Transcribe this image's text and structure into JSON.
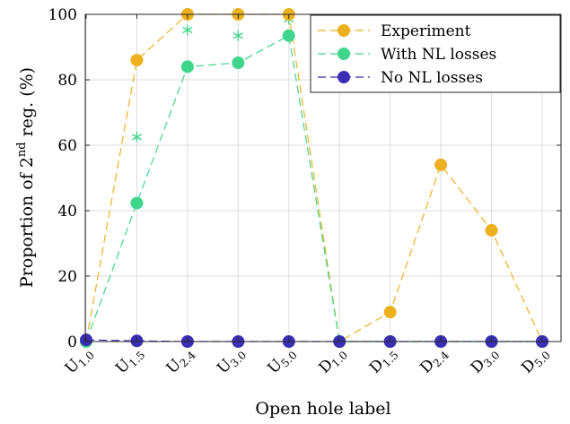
{
  "chart_data": {
    "type": "line",
    "xlabel": "Open hole label",
    "ylabel": {
      "base": "Proportion of 2",
      "sup": "nd",
      "rest": " reg. (%)"
    },
    "ylim": [
      0,
      100
    ],
    "yticks": [
      0,
      20,
      40,
      60,
      80,
      100
    ],
    "grid": true,
    "legend_position": "top-right",
    "categories": [
      {
        "base": "U",
        "sub": "1.0"
      },
      {
        "base": "U",
        "sub": "1.5"
      },
      {
        "base": "U",
        "sub": "2.4"
      },
      {
        "base": "U",
        "sub": "3.0"
      },
      {
        "base": "U",
        "sub": "5.0"
      },
      {
        "base": "D",
        "sub": "1.0"
      },
      {
        "base": "D",
        "sub": "1.5"
      },
      {
        "base": "D",
        "sub": "2.4"
      },
      {
        "base": "D",
        "sub": "3.0"
      },
      {
        "base": "D",
        "sub": "5.0"
      }
    ],
    "series": [
      {
        "name": "Experiment",
        "color": "#EDB120",
        "marker": "circle",
        "values": [
          0,
          86,
          100,
          100,
          100,
          0,
          9,
          54,
          34,
          0
        ]
      },
      {
        "name": "With NL losses",
        "color": "#3FD68C",
        "marker": "circle",
        "values": [
          0,
          42.3,
          84,
          85.2,
          93.5,
          0,
          0,
          0,
          0,
          0
        ]
      },
      {
        "name": "No NL losses",
        "color": "#3A2FB4",
        "marker": "circle",
        "values": [
          0.5,
          0.2,
          0,
          0,
          0,
          0,
          0,
          0,
          0,
          0
        ]
      }
    ],
    "star_series": {
      "color": "#3FD68C",
      "marker": "asterisk",
      "points": [
        {
          "category_index": 1,
          "value": 62.5
        },
        {
          "category_index": 2,
          "value": 95.2
        },
        {
          "category_index": 3,
          "value": 93.5
        },
        {
          "category_index": 4,
          "value": 98.5
        }
      ]
    }
  }
}
